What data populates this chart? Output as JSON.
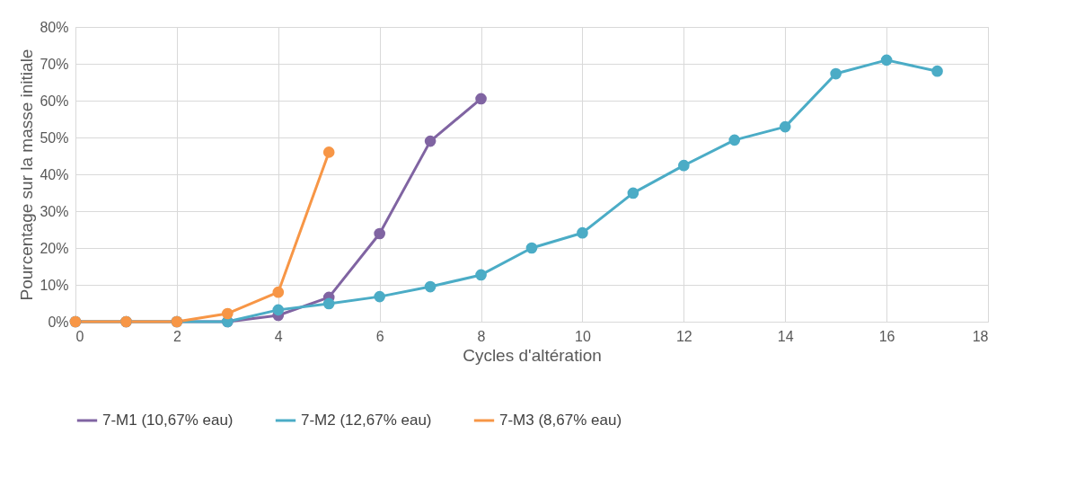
{
  "chart_data": {
    "type": "line",
    "xlabel": "Cycles d'altération",
    "ylabel": "Pourcentage sur la masse initiale",
    "xlim": [
      0,
      18
    ],
    "xticks": [
      0,
      2,
      4,
      6,
      8,
      10,
      12,
      14,
      16,
      18
    ],
    "ylim": [
      0,
      80
    ],
    "yticks": [
      {
        "value": 0,
        "label": "0%"
      },
      {
        "value": 10,
        "label": "10%"
      },
      {
        "value": 20,
        "label": "20%"
      },
      {
        "value": 30,
        "label": "30%"
      },
      {
        "value": 40,
        "label": "40%"
      },
      {
        "value": 50,
        "label": "50%"
      },
      {
        "value": 60,
        "label": "60%"
      },
      {
        "value": 70,
        "label": "70%"
      },
      {
        "value": 80,
        "label": "80%"
      }
    ],
    "grid": true,
    "legend": "bottom",
    "marker": "circle",
    "line_style": "solid",
    "series": [
      {
        "name": "7-M1 (10,67% eau)",
        "color": "#8064a2",
        "x": [
          0,
          1,
          2,
          3,
          4,
          5,
          6,
          7,
          8
        ],
        "values": [
          0,
          0,
          0,
          0,
          1.7,
          6.6,
          23.9,
          49,
          60.5
        ]
      },
      {
        "name": "7-M2 (12,67% eau)",
        "color": "#4bacc6",
        "x": [
          0,
          1,
          2,
          3,
          4,
          5,
          6,
          7,
          8,
          9,
          10,
          11,
          12,
          13,
          14,
          15,
          16,
          17
        ],
        "values": [
          0,
          0,
          0,
          0,
          3.2,
          4.9,
          6.8,
          9.5,
          12.7,
          20,
          24.1,
          34.9,
          42.4,
          49.3,
          52.9,
          67.3,
          71,
          68
        ]
      },
      {
        "name": "7-M3 (8,67% eau)",
        "color": "#f79646",
        "x": [
          0,
          1,
          2,
          3,
          4,
          5
        ],
        "values": [
          0,
          0,
          0,
          2.2,
          8,
          46
        ]
      }
    ]
  }
}
